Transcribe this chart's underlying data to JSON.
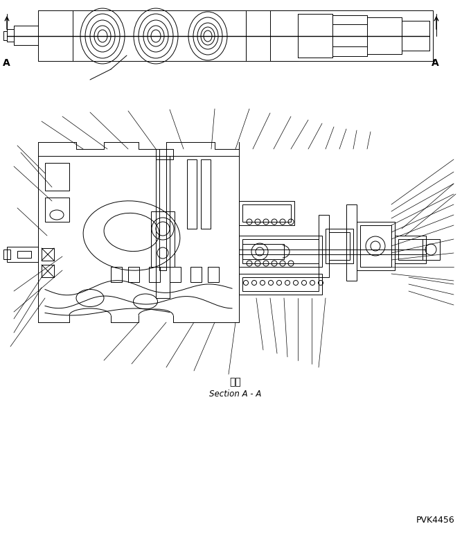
{
  "bg_color": "#ffffff",
  "line_color": "#000000",
  "text_color": "#000000",
  "section_label_jp": "断面",
  "section_label_en": "Section A - A",
  "watermark": "PVK4456",
  "fig_width": 6.8,
  "fig_height": 7.69,
  "dpi": 100
}
